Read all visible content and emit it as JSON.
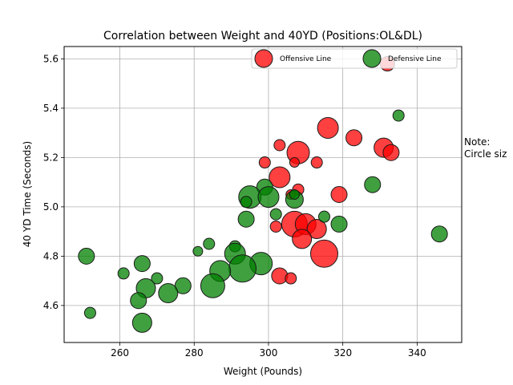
{
  "chart_data": {
    "type": "scatter",
    "title": "Correlation between Weight and 40YD (Positions:OL&DL)",
    "xlabel": "Weight (Pounds)",
    "ylabel": "40 YD Time (Seconds)",
    "xlim": [
      245,
      352
    ],
    "ylim": [
      4.45,
      5.65
    ],
    "xticks": [
      "260",
      "280",
      "300",
      "320",
      "340"
    ],
    "yticks": [
      "4.6",
      "4.8",
      "5.0",
      "5.2",
      "5.4",
      "5.6"
    ],
    "grid": true,
    "legend_position": "top-right",
    "note_lines": [
      "Note:",
      "Circle siz"
    ],
    "series": [
      {
        "name": "Offensive Line",
        "color": "#ff0000",
        "points": [
          {
            "x": 332,
            "y": 5.58,
            "s": 9
          },
          {
            "x": 316,
            "y": 5.32,
            "s": 13
          },
          {
            "x": 303,
            "y": 5.25,
            "s": 7
          },
          {
            "x": 323,
            "y": 5.28,
            "s": 10
          },
          {
            "x": 308,
            "y": 5.22,
            "s": 14
          },
          {
            "x": 331,
            "y": 5.24,
            "s": 12
          },
          {
            "x": 333,
            "y": 5.22,
            "s": 10
          },
          {
            "x": 299,
            "y": 5.18,
            "s": 7
          },
          {
            "x": 307,
            "y": 5.18,
            "s": 6
          },
          {
            "x": 313,
            "y": 5.18,
            "s": 7
          },
          {
            "x": 303,
            "y": 5.12,
            "s": 13
          },
          {
            "x": 308,
            "y": 5.07,
            "s": 7
          },
          {
            "x": 319,
            "y": 5.05,
            "s": 10
          },
          {
            "x": 306,
            "y": 5.05,
            "s": 6
          },
          {
            "x": 307,
            "y": 4.93,
            "s": 16
          },
          {
            "x": 310,
            "y": 4.93,
            "s": 13
          },
          {
            "x": 313,
            "y": 4.91,
            "s": 12
          },
          {
            "x": 302,
            "y": 4.92,
            "s": 7
          },
          {
            "x": 309,
            "y": 4.87,
            "s": 12
          },
          {
            "x": 315,
            "y": 4.81,
            "s": 17
          },
          {
            "x": 303,
            "y": 4.72,
            "s": 10
          },
          {
            "x": 306,
            "y": 4.71,
            "s": 7
          }
        ]
      },
      {
        "name": "Defensive Line",
        "color": "#008000",
        "points": [
          {
            "x": 335,
            "y": 5.37,
            "s": 7
          },
          {
            "x": 328,
            "y": 5.09,
            "s": 10
          },
          {
            "x": 299,
            "y": 5.08,
            "s": 10
          },
          {
            "x": 295,
            "y": 5.04,
            "s": 14
          },
          {
            "x": 300,
            "y": 5.04,
            "s": 13
          },
          {
            "x": 294,
            "y": 5.02,
            "s": 7
          },
          {
            "x": 307,
            "y": 5.03,
            "s": 11
          },
          {
            "x": 307,
            "y": 5.05,
            "s": 6
          },
          {
            "x": 302,
            "y": 4.97,
            "s": 7
          },
          {
            "x": 294,
            "y": 4.95,
            "s": 10
          },
          {
            "x": 315,
            "y": 4.96,
            "s": 7
          },
          {
            "x": 319,
            "y": 4.93,
            "s": 10
          },
          {
            "x": 346,
            "y": 4.89,
            "s": 10
          },
          {
            "x": 251,
            "y": 4.8,
            "s": 10
          },
          {
            "x": 284,
            "y": 4.85,
            "s": 7
          },
          {
            "x": 291,
            "y": 4.84,
            "s": 7
          },
          {
            "x": 281,
            "y": 4.82,
            "s": 6
          },
          {
            "x": 291,
            "y": 4.81,
            "s": 13
          },
          {
            "x": 298,
            "y": 4.77,
            "s": 14
          },
          {
            "x": 266,
            "y": 4.77,
            "s": 10
          },
          {
            "x": 293,
            "y": 4.75,
            "s": 17
          },
          {
            "x": 287,
            "y": 4.74,
            "s": 13
          },
          {
            "x": 261,
            "y": 4.73,
            "s": 7
          },
          {
            "x": 270,
            "y": 4.71,
            "s": 7
          },
          {
            "x": 285,
            "y": 4.68,
            "s": 15
          },
          {
            "x": 277,
            "y": 4.68,
            "s": 10
          },
          {
            "x": 267,
            "y": 4.67,
            "s": 12
          },
          {
            "x": 273,
            "y": 4.65,
            "s": 12
          },
          {
            "x": 265,
            "y": 4.62,
            "s": 10
          },
          {
            "x": 252,
            "y": 4.57,
            "s": 7
          },
          {
            "x": 266,
            "y": 4.53,
            "s": 12
          }
        ]
      }
    ]
  }
}
